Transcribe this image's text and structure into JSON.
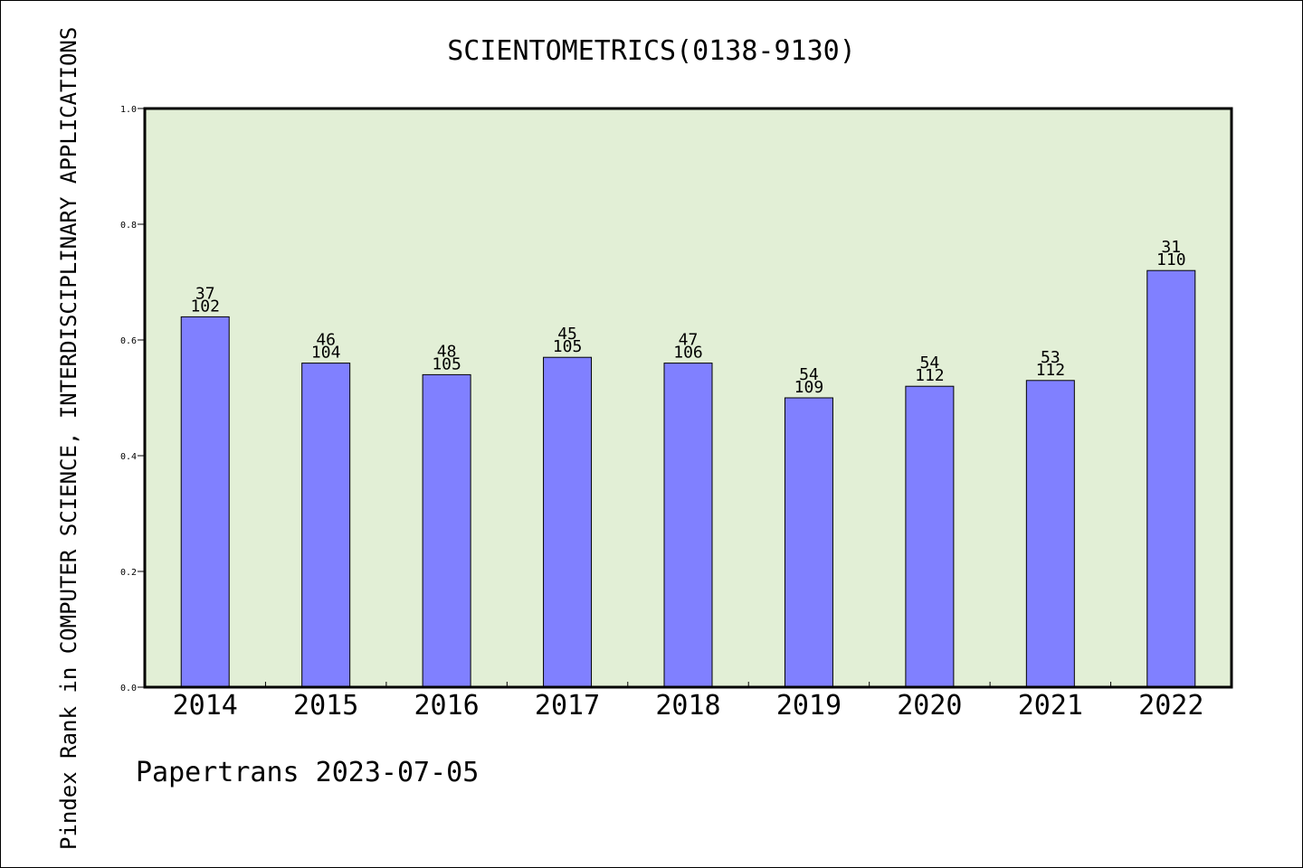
{
  "chart_data": {
    "type": "bar",
    "title": "SCIENTOMETRICS(0138-9130)",
    "ylabel": "Pindex Rank in COMPUTER SCIENCE, INTERDISCIPLINARY APPLICATIONS",
    "xlabel": "",
    "ylim": [
      0,
      1.0
    ],
    "yticks": [
      "0.0",
      "0.2",
      "0.4",
      "0.6",
      "0.8",
      "1.0"
    ],
    "categories": [
      "2014",
      "2015",
      "2016",
      "2017",
      "2018",
      "2019",
      "2020",
      "2021",
      "2022"
    ],
    "values": [
      0.64,
      0.56,
      0.54,
      0.57,
      0.56,
      0.5,
      0.52,
      0.53,
      0.72
    ],
    "rank_labels": [
      "37",
      "46",
      "48",
      "45",
      "47",
      "54",
      "54",
      "53",
      "31"
    ],
    "total_labels": [
      "102",
      "104",
      "105",
      "105",
      "106",
      "109",
      "112",
      "112",
      "110"
    ],
    "grid": false,
    "colors": {
      "bar": "#8080ff",
      "plot_bg": "#e2efd6"
    }
  },
  "footer": "Papertrans 2023-07-05"
}
